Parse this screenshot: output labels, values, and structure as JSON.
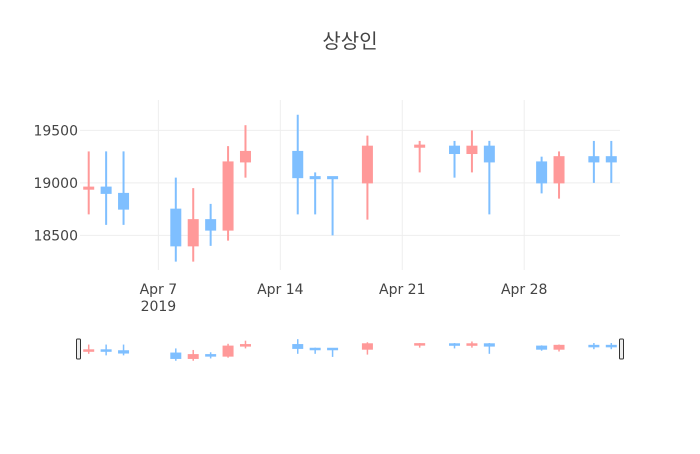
{
  "chart_data": {
    "type": "candlestick",
    "title": "상상인",
    "xlabel": "",
    "ylabel": "",
    "x_tick_labels": [
      {
        "date": "2019-04-07",
        "label": "Apr 7",
        "sublabel": "2019"
      },
      {
        "date": "2019-04-14",
        "label": "Apr 14",
        "sublabel": ""
      },
      {
        "date": "2019-04-21",
        "label": "Apr 21",
        "sublabel": ""
      },
      {
        "date": "2019-04-28",
        "label": "Apr 28",
        "sublabel": ""
      }
    ],
    "y_tick_labels": [
      "18500",
      "19000",
      "19500"
    ],
    "y_ticks": [
      18500,
      19000,
      19500
    ],
    "ylim": [
      18170,
      19790
    ],
    "xlim": [
      "2019-04-02 12:00",
      "2019-05-03 12:00"
    ],
    "grid": true,
    "rangeslider": true,
    "increasing_color": "#ff9999",
    "decreasing_color": "#7fbfff",
    "series": [
      {
        "date": "2019-04-03",
        "open": 18940,
        "high": 19300,
        "low": 18700,
        "close": 18960
      },
      {
        "date": "2019-04-04",
        "open": 18960,
        "high": 19300,
        "low": 18600,
        "close": 18900
      },
      {
        "date": "2019-04-05",
        "open": 18900,
        "high": 19300,
        "low": 18600,
        "close": 18750
      },
      {
        "date": "2019-04-08",
        "open": 18750,
        "high": 19050,
        "low": 18250,
        "close": 18400
      },
      {
        "date": "2019-04-09",
        "open": 18400,
        "high": 18950,
        "low": 18250,
        "close": 18650
      },
      {
        "date": "2019-04-10",
        "open": 18650,
        "high": 18800,
        "low": 18400,
        "close": 18550
      },
      {
        "date": "2019-04-11",
        "open": 18550,
        "high": 19350,
        "low": 18450,
        "close": 19200
      },
      {
        "date": "2019-04-12",
        "open": 19200,
        "high": 19550,
        "low": 19050,
        "close": 19300
      },
      {
        "date": "2019-04-15",
        "open": 19300,
        "high": 19650,
        "low": 18700,
        "close": 19050
      },
      {
        "date": "2019-04-16",
        "open": 19060,
        "high": 19100,
        "low": 18700,
        "close": 19040
      },
      {
        "date": "2019-04-17",
        "open": 19060,
        "high": 19060,
        "low": 18500,
        "close": 19040
      },
      {
        "date": "2019-04-19",
        "open": 19000,
        "high": 19450,
        "low": 18650,
        "close": 19350
      },
      {
        "date": "2019-04-22",
        "open": 19340,
        "high": 19400,
        "low": 19100,
        "close": 19360
      },
      {
        "date": "2019-04-24",
        "open": 19350,
        "high": 19400,
        "low": 19050,
        "close": 19280
      },
      {
        "date": "2019-04-25",
        "open": 19280,
        "high": 19500,
        "low": 19100,
        "close": 19350
      },
      {
        "date": "2019-04-26",
        "open": 19350,
        "high": 19400,
        "low": 18700,
        "close": 19200
      },
      {
        "date": "2019-04-29",
        "open": 19200,
        "high": 19250,
        "low": 18900,
        "close": 19000
      },
      {
        "date": "2019-04-30",
        "open": 19000,
        "high": 19300,
        "low": 18850,
        "close": 19250
      },
      {
        "date": "2019-05-02",
        "open": 19250,
        "high": 19400,
        "low": 19000,
        "close": 19200
      },
      {
        "date": "2019-05-03",
        "open": 19250,
        "high": 19400,
        "low": 19000,
        "close": 19200
      }
    ]
  },
  "colors": {
    "background": "#ffffff",
    "grid": "#eeeeee",
    "text": "#444444",
    "title": "#444444",
    "slider_handle": "#333333"
  }
}
